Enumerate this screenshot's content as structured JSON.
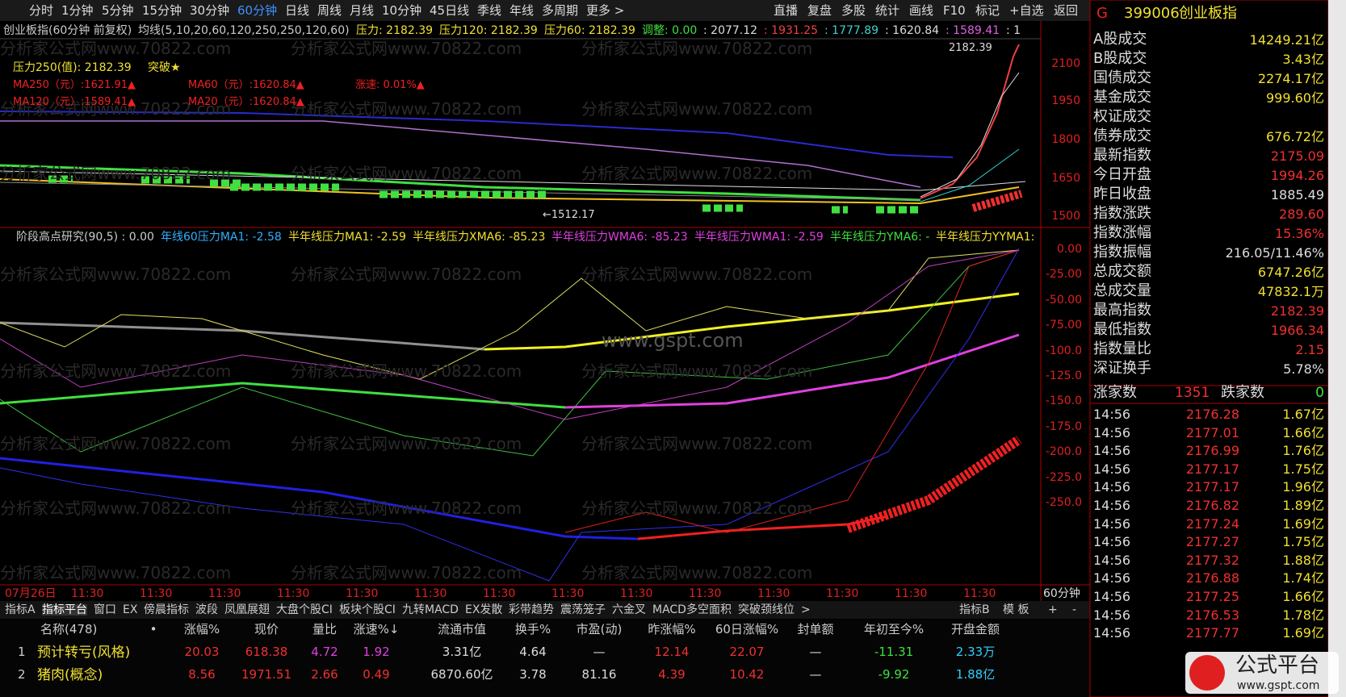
{
  "toolbar": {
    "periods": [
      "分时",
      "1分钟",
      "5分钟",
      "15分钟",
      "30分钟",
      "60分钟",
      "日线",
      "周线",
      "月线",
      "10分钟",
      "45日线",
      "季线",
      "年线",
      "多周期",
      "更多 >"
    ],
    "tools": [
      "直播",
      "复盘",
      "多股",
      "统计",
      "画线",
      "F10",
      "标记",
      "+自选",
      "返回"
    ]
  },
  "main_chart": {
    "header": [
      "创业板指(60分钟 前复权)",
      "均线(5,10,20,60,120,250,250,120,60)",
      "压力: 2182.39",
      "压力120: 2182.39",
      "压力60: 2182.39",
      "调整: 0.00",
      ": 2077.12",
      ": 1931.25",
      ": 1777.89",
      ": 1620.84",
      ": 1589.41",
      ": 1"
    ],
    "overlay": {
      "pressure250": "压力250(值): 2182.39",
      "breakout": "突破★",
      "ma250": "MA250（元）:1621.91▲",
      "ma60": "MA60（元）:1620.84▲",
      "speed": "涨速: 0.01%▲",
      "ma120": "MA120（元）:1589.41▲",
      "ma20": "MA20（元）:1620.84▲"
    },
    "high_label": "2182.39",
    "low_label": "←1512.17",
    "price_axis": [
      "2100",
      "1950",
      "1800",
      "1650",
      "1500"
    ]
  },
  "indicator": {
    "header": [
      "阶段高点研究(90,5) : 0.00",
      "年线60压力MA1: -2.58",
      "半年线压力MA1: -2.59",
      "半年线压力XMA6: -85.23",
      "半年线压力WMA6: -85.23",
      "半年线压力WMA1: -2.59",
      "半年线压力YMA6: -",
      "半年线压力YYMA1:"
    ],
    "axis": [
      "0.00",
      "-25.00",
      "-50.00",
      "-75.00",
      "-100.0",
      "-125.0",
      "-150.0",
      "-175.0",
      "-200.0",
      "-225.0",
      "-250.0"
    ]
  },
  "time_axis": {
    "labels": [
      "07月26日",
      "11:30",
      "11:30",
      "11:30",
      "11:30",
      "11:30",
      "11:30",
      "11:30",
      "11:30",
      "11:30",
      "11:30",
      "11:30",
      "11:30",
      "11:30",
      "11:30"
    ],
    "period": "60分钟"
  },
  "watermark": "分析家公式网www.70822.com",
  "site": "www.gspt.com",
  "indicator_tabs": {
    "left": [
      "指标A",
      "指标平台",
      "窗口",
      "EX",
      "傍晨指标",
      "波段",
      "凤凰展翅",
      "大盘个股CI",
      "板块个股CI",
      "九转MACD",
      "EX发散",
      "彩带趋势",
      "震荡笼子",
      "六金叉",
      "MACD多空面积",
      "突破颈线位",
      ">"
    ],
    "right": [
      "指标B",
      "模 板",
      "+",
      "-"
    ]
  },
  "table": {
    "columns": [
      "名称(478)",
      "•",
      "涨幅%",
      "现价",
      "量比",
      "涨速%↓",
      "流通市值",
      "换手%",
      "市盈(动)",
      "昨涨幅%",
      "60日涨幅%",
      "封单额",
      "年初至今%",
      "开盘金额"
    ],
    "rows": [
      [
        "1",
        "预计转亏(风格)",
        "20.03",
        "618.38",
        "4.72",
        "1.92",
        "3.31亿",
        "4.64",
        "—",
        "12.14",
        "22.07",
        "—",
        "-11.31",
        "2.33万"
      ],
      [
        "2",
        "猪肉(概念)",
        "8.56",
        "1971.51",
        "2.66",
        "0.49",
        "6870.60亿",
        "3.78",
        "81.16",
        "4.39",
        "10.42",
        "—",
        "-9.92",
        "1.88亿"
      ]
    ]
  },
  "quote_panel": {
    "marker": "G",
    "code": "399006",
    "name": "创业板指",
    "stats": [
      {
        "label": "A股成交",
        "value": "14249.21亿"
      },
      {
        "label": "B股成交",
        "value": "3.43亿"
      },
      {
        "label": "国债成交",
        "value": "2274.17亿"
      },
      {
        "label": "基金成交",
        "value": "999.60亿"
      },
      {
        "label": "权证成交"
      },
      {
        "label": "债券成交",
        "value": "676.72亿"
      },
      {
        "label": "最新指数",
        "value": "2175.09"
      },
      {
        "label": "今日开盘",
        "value": "1994.26"
      },
      {
        "label": "昨日收盘",
        "value": "1885.49"
      },
      {
        "label": "指数涨跌",
        "value": "289.60"
      },
      {
        "label": "指数涨幅",
        "value": "15.36%"
      },
      {
        "label": "指数振幅",
        "value": "216.05/11.46%"
      },
      {
        "label": "总成交额",
        "value": "6747.26亿"
      },
      {
        "label": "总成交量",
        "value": "47832.1万"
      },
      {
        "label": "最高指数",
        "value": "2182.39"
      },
      {
        "label": "最低指数",
        "value": "1966.34"
      },
      {
        "label": "指数量比",
        "value": "2.15"
      },
      {
        "label": "深证换手",
        "value": "5.78%"
      }
    ],
    "advancers_label": "涨家数",
    "advancers": "1351",
    "decliners_label": "跌家数",
    "decliners": "0",
    "ticks": [
      {
        "time": "14:56",
        "price": "2176.28",
        "amount": "1.67亿"
      },
      {
        "time": "14:56",
        "price": "2177.01",
        "amount": "1.66亿"
      },
      {
        "time": "14:56",
        "price": "2176.99",
        "amount": "1.76亿"
      },
      {
        "time": "14:56",
        "price": "2177.17",
        "amount": "1.75亿"
      },
      {
        "time": "14:56",
        "price": "2177.17",
        "amount": "1.96亿"
      },
      {
        "time": "14:56",
        "price": "2176.82",
        "amount": "1.89亿"
      },
      {
        "time": "14:56",
        "price": "2177.24",
        "amount": "1.69亿"
      },
      {
        "time": "14:56",
        "price": "2177.27",
        "amount": "1.75亿"
      },
      {
        "time": "14:56",
        "price": "2177.32",
        "amount": "1.88亿"
      },
      {
        "time": "14:56",
        "price": "2176.88",
        "amount": "1.74亿"
      },
      {
        "time": "14:56",
        "price": "2177.25",
        "amount": "1.66亿"
      },
      {
        "time": "14:56",
        "price": "2176.53",
        "amount": "1.78亿"
      },
      {
        "time": "14:56",
        "price": "2177.77",
        "amount": "1.69亿"
      }
    ]
  },
  "logo": {
    "name": "公式平台"
  }
}
